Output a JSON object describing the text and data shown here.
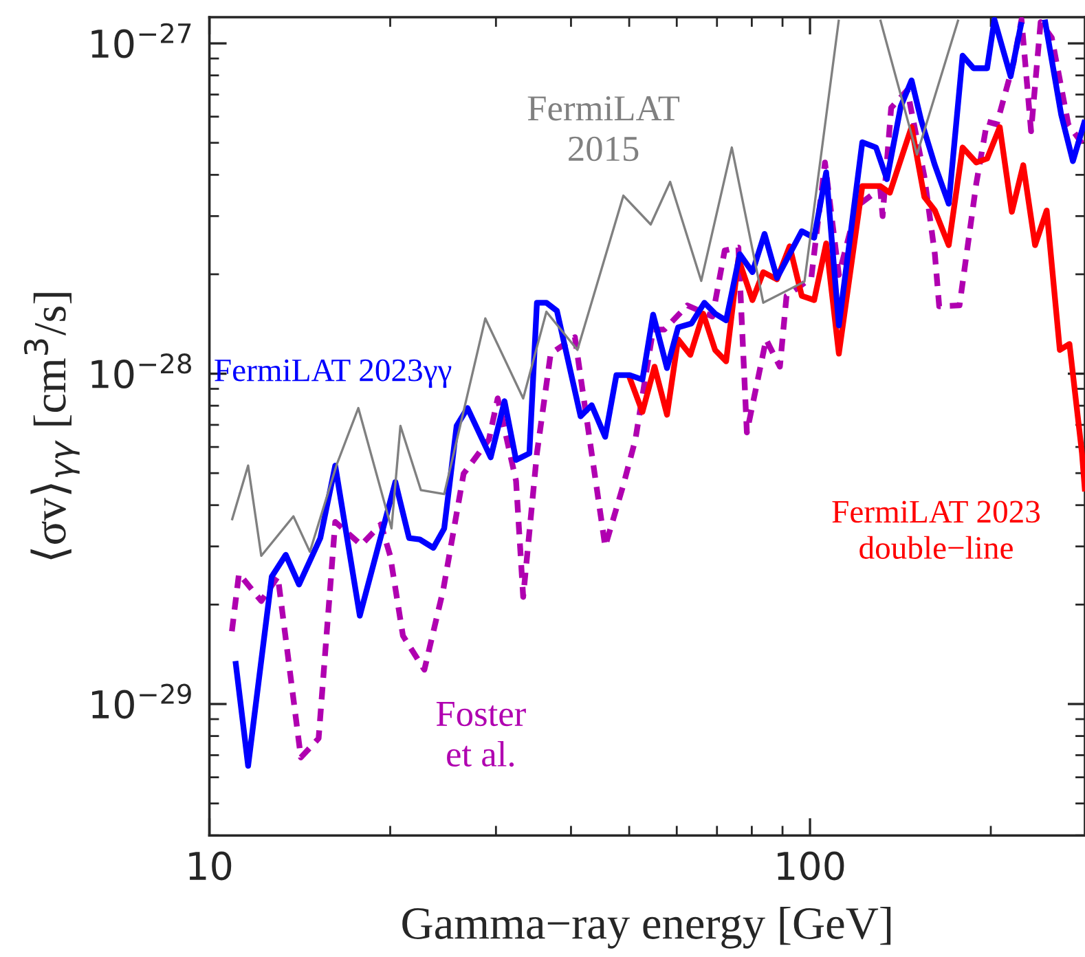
{
  "chart_data": {
    "type": "line",
    "xlabel": "Gamma−ray energy [GeV]",
    "ylabel": "⟨σv⟩$_{γγ}$ [cm$^{3}$/s]",
    "log": "xy",
    "xlim": [
      10,
      287
    ],
    "ylim": [
      4e-30,
      1.2e-27
    ],
    "xticks": [
      10,
      100
    ],
    "yticks": [
      {
        "value": 1e-29,
        "label": "10$^{−29}$"
      },
      {
        "value": 1e-28,
        "label": "10$^{−28}$"
      },
      {
        "value": 1e-27,
        "label": "10$^{−27}$"
      }
    ],
    "grid": false,
    "legend": false,
    "marker": "none",
    "series": [
      {
        "name": "FermiLAT\n2015",
        "color": "#808080",
        "line_style": "solid",
        "x": [
          10.9,
          11.6,
          12.2,
          13.8,
          14.7,
          16.3,
          17.7,
          20.1,
          20.8,
          22.5,
          24.6,
          28.8,
          33.3,
          36.4,
          41.0,
          48.9,
          54.3,
          58.5,
          65.9,
          74.1,
          83.6,
          97.9,
          111.7,
          122,
          130.9,
          150.7,
          176.6
        ],
        "values": [
          3.6e-29,
          5.27e-29,
          2.81e-29,
          3.7e-29,
          2.89e-29,
          5.32e-29,
          7.87e-29,
          3.4e-29,
          6.95e-29,
          4.44e-29,
          4.32e-29,
          1.47e-28,
          8.42e-29,
          1.54e-28,
          1.18e-28,
          3.46e-28,
          2.83e-28,
          3.81e-28,
          1.91e-28,
          4.84e-28,
          1.64e-28,
          1.9e-28,
          1.18e-27,
          null,
          1.18e-27,
          4.61e-28,
          1.18e-27
        ]
      },
      {
        "name": "Foster\net al.",
        "color": "#b000b0",
        "line_style": "dashed",
        "x": [
          10.9,
          11.2,
          12.2,
          13.0,
          14.2,
          15.2,
          16.2,
          17.9,
          19.3,
          20.0,
          21.0,
          22.8,
          24.5,
          26.5,
          29.2,
          30.2,
          32.4,
          33.3,
          35.1,
          37.0,
          40.6,
          43.3,
          45.6,
          48.9,
          51.2,
          54.8,
          57.2,
          62.5,
          68.8,
          72.1,
          76.0,
          78.5,
          84.5,
          89.1,
          91.4,
          100.5,
          105.9,
          111.7,
          119.6,
          130.9,
          132.1,
          136.5,
          145.2,
          155.0,
          161.4,
          164.1,
          177.4,
          189.2,
          197.2,
          204.6,
          218.3,
          225,
          233.4,
          242.1,
          252.7,
          269.2,
          287
        ],
        "values": [
          1.66e-29,
          2.48e-29,
          2.05e-29,
          2.43e-29,
          6.89e-30,
          7.87e-30,
          3.56e-29,
          3.03e-29,
          3.5e-29,
          2.81e-29,
          1.61e-29,
          1.27e-29,
          2.21e-29,
          4.98e-29,
          6.32e-29,
          8.42e-29,
          4.74e-29,
          2.11e-29,
          5.74e-29,
          1.15e-28,
          1.29e-28,
          5.74e-29,
          3e-29,
          4.61e-29,
          6.32e-29,
          1.36e-28,
          1.36e-28,
          1.61e-28,
          1.49e-28,
          2.36e-28,
          2.41e-28,
          6.64e-29,
          1.27e-28,
          1.05e-28,
          1.72e-28,
          1.95e-28,
          4.36e-28,
          1.99e-28,
          3.21e-28,
          3.63e-28,
          3e-28,
          6.38e-28,
          7.22e-28,
          3.96e-28,
          2.3e-28,
          1.6e-28,
          1.61e-28,
          3.77e-28,
          5.8e-28,
          5.69e-28,
          8.75e-28,
          1.18e-27,
          5.42e-28,
          1.16e-27,
          1.04e-27,
          5.69e-28,
          4.84e-28
        ]
      },
      {
        "name": "FermiLAT 2023\ndouble−line",
        "color": "#ff0000",
        "line_style": "solid",
        "x": [
          49.9,
          52.6,
          55.1,
          57.8,
          60.3,
          63.2,
          66.4,
          69.5,
          72.5,
          76.0,
          80.2,
          83.6,
          88.1,
          92.5,
          96.9,
          101.6,
          106.4,
          111.7,
          122.2,
          130.9,
          135.8,
          147.6,
          155.0,
          161.4,
          170.2,
          179.5,
          189.2,
          197.2,
          207.0,
          216.8,
          226.5,
          237,
          247.8,
          260.6,
          270.4,
          283.7,
          287
        ],
        "values": [
          9.9e-29,
          7.66e-29,
          1.05e-28,
          7.51e-29,
          1.27e-28,
          1.14e-28,
          1.52e-28,
          1.18e-28,
          1.09e-28,
          2.23e-28,
          1.67e-28,
          2.03e-28,
          1.93e-28,
          2.43e-28,
          1.72e-28,
          1.67e-28,
          2.48e-28,
          1.15e-28,
          3.7e-28,
          3.7e-28,
          3.53e-28,
          5.58e-28,
          3.43e-28,
          3.12e-28,
          2.45e-28,
          4.84e-28,
          4.36e-28,
          4.48e-28,
          5.58e-28,
          3.09e-28,
          4.28e-28,
          2.45e-28,
          3.12e-28,
          1.18e-28,
          1.23e-28,
          5.74e-29,
          4.4e-29
        ]
      },
      {
        "name": "FermiLAT 2023γγ",
        "color": "#0000ff",
        "line_style": "solid",
        "x": [
          11.05,
          11.6,
          12.7,
          13.4,
          14.1,
          15.3,
          16.2,
          17.8,
          20.4,
          21.5,
          22.4,
          23.6,
          24.6,
          25.8,
          26.9,
          29.4,
          31.0,
          32.4,
          34.1,
          35.1,
          36.4,
          37.9,
          41.5,
          43.3,
          45.6,
          47.6,
          50.1,
          52.6,
          54.8,
          57.8,
          60.3,
          63.5,
          66.7,
          69.5,
          72.5,
          76.4,
          80.2,
          84.0,
          88.1,
          96.9,
          101.6,
          106.4,
          111.7,
          122.2,
          128.8,
          134.3,
          141.6,
          147.6,
          153.1,
          161.4,
          170.2,
          179.5,
          187.2,
          197.2,
          202.8,
          215.8,
          225,
          237,
          246,
          262,
          274,
          287
        ],
        "values": [
          1.35e-29,
          6.5e-30,
          2.43e-29,
          2.83e-29,
          2.3e-29,
          3.18e-29,
          5.27e-29,
          1.85e-29,
          4.7e-29,
          3.18e-29,
          3.15e-29,
          2.97e-29,
          3.4e-29,
          6.95e-29,
          7.87e-29,
          5.58e-29,
          8.26e-29,
          5.48e-29,
          5.74e-29,
          1.64e-28,
          1.64e-28,
          1.55e-28,
          7.43e-29,
          8.03e-29,
          6.44e-29,
          9.9e-29,
          9.9e-29,
          9.6e-29,
          1.51e-28,
          1.04e-28,
          1.38e-28,
          1.42e-28,
          1.64e-28,
          1.52e-28,
          1.45e-28,
          2.3e-28,
          2.03e-28,
          2.65e-28,
          1.95e-28,
          2.7e-28,
          2.58e-28,
          4.07e-28,
          1.4e-28,
          5.02e-28,
          4.84e-28,
          3.88e-28,
          6.44e-28,
          7.73e-28,
          5.86e-28,
          4.28e-28,
          3.27e-28,
          9.18e-28,
          8.41e-28,
          8.41e-28,
          1.18e-27,
          7.94e-28,
          1.16e-27,
          null,
          1.18e-27,
          6.08e-28,
          4.4e-28,
          5.86e-28
        ]
      }
    ]
  }
}
